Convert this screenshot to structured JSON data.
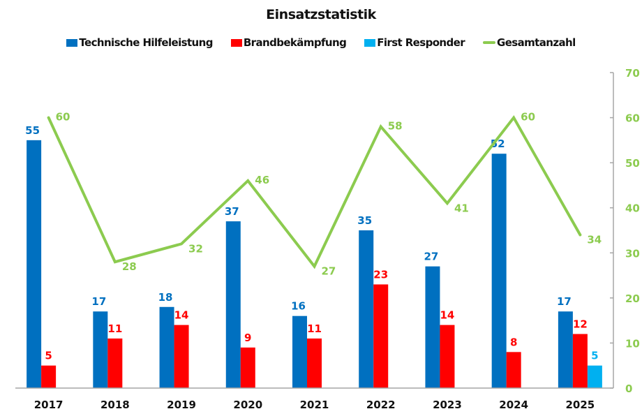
{
  "chart_data": {
    "type": "bar",
    "title": "Einsatzstatistik",
    "xlabel": "",
    "ylabel": "",
    "categories": [
      "2017",
      "2018",
      "2019",
      "2020",
      "2021",
      "2022",
      "2023",
      "2024",
      "2025"
    ],
    "series": [
      {
        "name": "Technische Hilfeleistung",
        "type": "bar",
        "color": "#0070C0",
        "values": [
          55,
          17,
          18,
          37,
          16,
          35,
          27,
          52,
          17
        ]
      },
      {
        "name": "Brandbekämpfung",
        "type": "bar",
        "color": "#FF0000",
        "values": [
          5,
          11,
          14,
          9,
          11,
          23,
          14,
          8,
          12
        ]
      },
      {
        "name": "First Responder",
        "type": "bar",
        "color": "#00B0F0",
        "values": [
          null,
          null,
          null,
          null,
          null,
          null,
          null,
          null,
          5
        ]
      },
      {
        "name": "Gesamtanzahl",
        "type": "line",
        "color": "#8CCB4F",
        "values": [
          60,
          28,
          32,
          46,
          27,
          58,
          41,
          60,
          34
        ]
      }
    ],
    "ylim": [
      0,
      70
    ],
    "y_axis_side": "right",
    "y_ticks": [
      "0",
      "10",
      "20",
      "30",
      "40",
      "50",
      "60",
      "70"
    ],
    "y_tick_color": "#8CCB4F",
    "grid": false,
    "legend_position": "top",
    "data_labels": true
  }
}
